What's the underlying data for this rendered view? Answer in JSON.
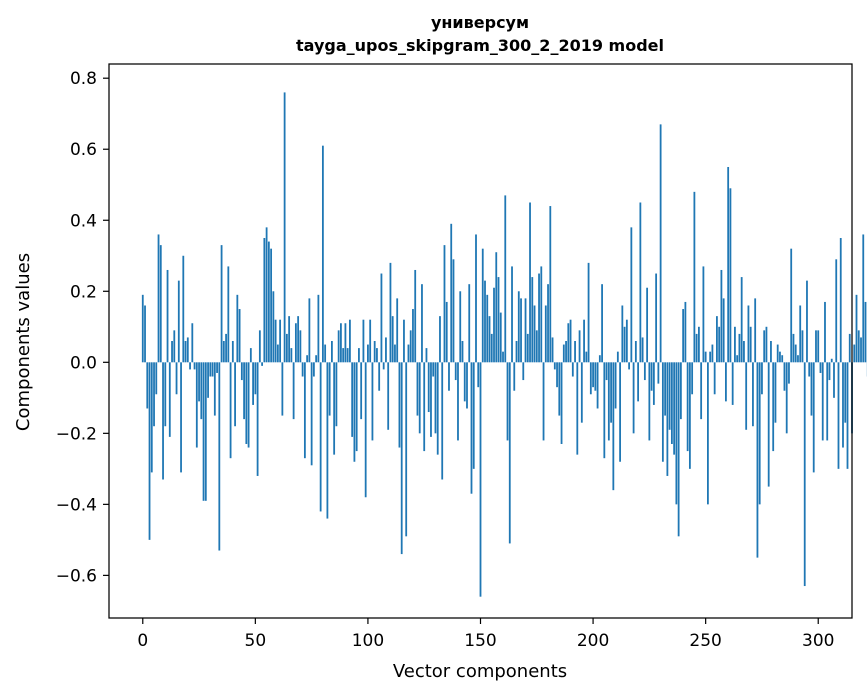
{
  "chart_data": {
    "type": "bar",
    "title_line1": "универсум",
    "title_line2": "tayga_upos_skipgram_300_2_2019 model",
    "xlabel": "Vector components",
    "ylabel": "Components values",
    "xlim": [
      -15,
      315
    ],
    "ylim": [
      -0.72,
      0.84
    ],
    "xticks": [
      0,
      50,
      100,
      150,
      200,
      250,
      300
    ],
    "xtick_labels": [
      "0",
      "50",
      "100",
      "150",
      "200",
      "250",
      "300"
    ],
    "yticks": [
      -0.6,
      -0.4,
      -0.2,
      0.0,
      0.2,
      0.4,
      0.6,
      0.8
    ],
    "ytick_labels": [
      "−0.6",
      "−0.4",
      "−0.2",
      "0.0",
      "0.2",
      "0.4",
      "0.6",
      "0.8"
    ],
    "bar_color": "#1f77b4",
    "values": [
      0.19,
      0.16,
      -0.13,
      -0.5,
      -0.31,
      -0.18,
      -0.09,
      0.36,
      0.33,
      -0.33,
      -0.18,
      0.26,
      -0.21,
      0.06,
      0.09,
      -0.09,
      0.23,
      -0.31,
      0.3,
      0.06,
      0.07,
      -0.02,
      0.11,
      -0.02,
      -0.24,
      -0.11,
      -0.16,
      -0.39,
      -0.39,
      -0.1,
      -0.04,
      -0.04,
      -0.15,
      -0.03,
      -0.53,
      0.33,
      0.06,
      0.08,
      0.27,
      -0.27,
      0.06,
      -0.18,
      0.19,
      0.15,
      -0.05,
      -0.16,
      -0.23,
      -0.24,
      0.04,
      -0.12,
      -0.09,
      -0.32,
      0.09,
      -0.01,
      0.35,
      0.38,
      0.34,
      0.32,
      0.2,
      0.12,
      0.05,
      0.12,
      -0.15,
      0.76,
      0.08,
      0.13,
      0.04,
      -0.16,
      0.11,
      0.13,
      0.09,
      -0.04,
      -0.27,
      0.02,
      0.18,
      -0.29,
      -0.04,
      0.02,
      0.19,
      -0.42,
      0.61,
      0.05,
      -0.44,
      -0.15,
      0.06,
      -0.26,
      -0.18,
      0.09,
      0.11,
      0.04,
      0.11,
      0.04,
      0.12,
      -0.21,
      -0.28,
      -0.25,
      0.04,
      -0.16,
      0.12,
      -0.38,
      0.05,
      0.12,
      -0.22,
      0.06,
      0.04,
      -0.08,
      0.25,
      -0.02,
      0.07,
      -0.19,
      0.28,
      0.13,
      0.05,
      0.18,
      -0.24,
      -0.54,
      0.12,
      -0.49,
      0.05,
      0.09,
      0.15,
      0.26,
      -0.15,
      -0.2,
      0.22,
      -0.25,
      0.04,
      -0.14,
      -0.21,
      -0.04,
      -0.2,
      -0.26,
      0.13,
      -0.33,
      0.33,
      0.17,
      -0.08,
      0.39,
      0.29,
      -0.05,
      -0.22,
      0.2,
      0.06,
      -0.11,
      -0.13,
      0.22,
      -0.37,
      -0.3,
      0.36,
      -0.07,
      -0.66,
      0.32,
      0.23,
      0.19,
      0.13,
      0.08,
      0.21,
      0.31,
      0.24,
      0.14,
      0.03,
      0.47,
      -0.22,
      -0.51,
      0.27,
      -0.08,
      0.06,
      0.2,
      0.18,
      -0.05,
      0.18,
      0.08,
      0.45,
      0.24,
      0.16,
      0.09,
      0.25,
      0.27,
      -0.22,
      0.16,
      0.22,
      0.44,
      0.07,
      -0.02,
      -0.07,
      -0.15,
      -0.23,
      0.05,
      0.06,
      0.11,
      0.12,
      -0.04,
      0.06,
      -0.26,
      0.09,
      -0.17,
      0.12,
      0.03,
      0.28,
      -0.09,
      -0.07,
      -0.08,
      -0.13,
      0.02,
      0.22,
      -0.27,
      -0.05,
      -0.22,
      -0.17,
      -0.36,
      -0.13,
      0.03,
      -0.28,
      0.16,
      0.1,
      0.12,
      -0.02,
      0.38,
      -0.2,
      0.06,
      -0.11,
      0.45,
      0.07,
      -0.05,
      0.21,
      -0.22,
      -0.08,
      -0.12,
      0.25,
      -0.06,
      0.67,
      -0.28,
      -0.15,
      -0.32,
      -0.19,
      -0.23,
      -0.26,
      -0.4,
      -0.49,
      -0.16,
      0.15,
      0.17,
      -0.25,
      -0.3,
      -0.09,
      0.48,
      0.08,
      0.1,
      -0.16,
      0.27,
      0.03,
      -0.4,
      0.03,
      0.05,
      -0.09,
      0.13,
      0.1,
      0.26,
      0.18,
      -0.11,
      0.55,
      0.49,
      -0.12,
      0.1,
      0.02,
      0.08,
      0.24,
      0.06,
      -0.19,
      0.16,
      0.1,
      -0.18,
      0.18,
      -0.55,
      -0.4,
      -0.09,
      0.09,
      0.1,
      -0.35,
      0.06,
      -0.25,
      -0.17,
      0.05,
      0.03,
      0.02,
      -0.08,
      -0.2,
      -0.06,
      0.32,
      0.08,
      0.05,
      0.02,
      0.16,
      0.09,
      -0.63,
      0.23,
      -0.04,
      -0.15,
      -0.31,
      0.09,
      0.09,
      -0.03,
      -0.22,
      0.17,
      -0.22,
      -0.05,
      0.01,
      -0.1,
      0.29,
      -0.3,
      0.35,
      -0.24,
      -0.17,
      -0.3,
      0.08,
      -0.2,
      0.05,
      0.19,
      0.09,
      0.07,
      0.36,
      0.17,
      -0.04
    ]
  }
}
